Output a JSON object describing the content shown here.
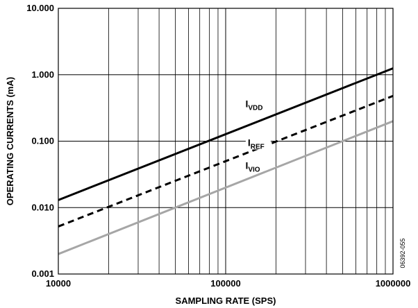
{
  "chart_data": {
    "type": "line",
    "xlabel": "SAMPLING RATE (SPS)",
    "ylabel": "OPERATING CURRENTS (mA)",
    "x_scale": "log",
    "y_scale": "log",
    "xlim": [
      10000,
      1000000
    ],
    "ylim": [
      0.001,
      10
    ],
    "x_ticks": [
      10000,
      100000,
      1000000
    ],
    "x_tick_labels": [
      "10000",
      "100000",
      "1000000"
    ],
    "y_ticks": [
      0.001,
      0.01,
      0.1,
      1,
      10
    ],
    "y_tick_labels": [
      "0.001",
      "0.010",
      "0.100",
      "1.000",
      "10.000"
    ],
    "grid": true,
    "series": [
      {
        "name_main": "I",
        "name_sub": "VDD",
        "style": "solid",
        "color": "#000000",
        "x": [
          10000,
          1000000
        ],
        "y": [
          0.013,
          1.25
        ]
      },
      {
        "name_main": "I",
        "name_sub": "REF",
        "style": "dashed",
        "color": "#000000",
        "x": [
          10000,
          1000000
        ],
        "y": [
          0.0052,
          0.48
        ]
      },
      {
        "name_main": "I",
        "name_sub": "VIO",
        "style": "solid",
        "color": "#a6a6a6",
        "x": [
          10000,
          1000000
        ],
        "y": [
          0.002,
          0.2
        ]
      }
    ],
    "figure_id": "06392-055"
  }
}
